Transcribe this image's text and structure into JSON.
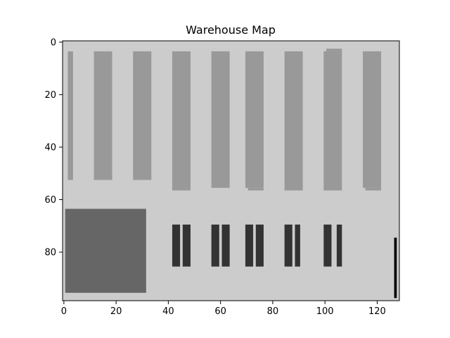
{
  "chart_data": {
    "type": "heatmap",
    "title": "Warehouse Map",
    "xlabel": "",
    "ylabel": "",
    "xlim": [
      -0.5,
      128.5
    ],
    "ylim": [
      98.5,
      -0.5
    ],
    "x_ticks": [
      0,
      20,
      40,
      60,
      80,
      100,
      120
    ],
    "y_ticks": [
      0,
      20,
      40,
      60,
      80
    ],
    "grid": false,
    "colormap": "gray",
    "background_value": 0.8,
    "background_color": "#cccccc",
    "regions": [
      {
        "kind": "shelf",
        "x": [
          1.5,
          3.5
        ],
        "y": [
          3.5,
          52.5
        ],
        "value": 0.6,
        "color": "#999999"
      },
      {
        "kind": "shelf",
        "x": [
          11.5,
          18.5
        ],
        "y": [
          3.5,
          52.5
        ],
        "value": 0.6,
        "color": "#999999"
      },
      {
        "kind": "shelf",
        "x": [
          26.5,
          33.5
        ],
        "y": [
          3.5,
          52.5
        ],
        "value": 0.6,
        "color": "#999999"
      },
      {
        "kind": "shelf",
        "x": [
          41.5,
          48.5
        ],
        "y": [
          3.5,
          56.5
        ],
        "value": 0.6,
        "color": "#999999"
      },
      {
        "kind": "shelf",
        "x": [
          56.5,
          63.5
        ],
        "y": [
          3.5,
          55.5
        ],
        "value": 0.6,
        "color": "#999999"
      },
      {
        "kind": "shelf",
        "x": [
          69.5,
          76.5
        ],
        "y": [
          3.5,
          55.5
        ],
        "value": 0.6,
        "color": "#999999"
      },
      {
        "kind": "shelf",
        "x": [
          70.5,
          76.5
        ],
        "y": [
          55.5,
          56.5
        ],
        "value": 0.6,
        "color": "#999999"
      },
      {
        "kind": "shelf",
        "x": [
          84.5,
          91.5
        ],
        "y": [
          3.5,
          56.5
        ],
        "value": 0.6,
        "color": "#999999"
      },
      {
        "kind": "shelf",
        "x": [
          99.5,
          106.5
        ],
        "y": [
          3.5,
          56.5
        ],
        "value": 0.6,
        "color": "#999999"
      },
      {
        "kind": "shelf",
        "x": [
          100.5,
          106.5
        ],
        "y": [
          2.5,
          3.5
        ],
        "value": 0.6,
        "color": "#999999"
      },
      {
        "kind": "shelf",
        "x": [
          114.5,
          121.5
        ],
        "y": [
          3.5,
          55.5
        ],
        "value": 0.6,
        "color": "#999999"
      },
      {
        "kind": "shelf",
        "x": [
          115.5,
          121.5
        ],
        "y": [
          55.5,
          56.5
        ],
        "value": 0.6,
        "color": "#999999"
      },
      {
        "kind": "block",
        "x": [
          0.5,
          31.5
        ],
        "y": [
          63.5,
          95.5
        ],
        "value": 0.4,
        "color": "#666666"
      },
      {
        "kind": "rack",
        "x": [
          41.5,
          44.5
        ],
        "y": [
          69.5,
          85.5
        ],
        "value": 0.2,
        "color": "#333333"
      },
      {
        "kind": "rack",
        "x": [
          45.5,
          48.5
        ],
        "y": [
          69.5,
          85.5
        ],
        "value": 0.2,
        "color": "#333333"
      },
      {
        "kind": "rack",
        "x": [
          56.5,
          59.5
        ],
        "y": [
          69.5,
          85.5
        ],
        "value": 0.2,
        "color": "#333333"
      },
      {
        "kind": "rack",
        "x": [
          60.5,
          63.5
        ],
        "y": [
          69.5,
          85.5
        ],
        "value": 0.2,
        "color": "#333333"
      },
      {
        "kind": "rack",
        "x": [
          69.5,
          72.5
        ],
        "y": [
          69.5,
          85.5
        ],
        "value": 0.2,
        "color": "#333333"
      },
      {
        "kind": "rack",
        "x": [
          73.5,
          76.5
        ],
        "y": [
          69.5,
          85.5
        ],
        "value": 0.2,
        "color": "#333333"
      },
      {
        "kind": "rack",
        "x": [
          84.5,
          87.5
        ],
        "y": [
          69.5,
          85.5
        ],
        "value": 0.2,
        "color": "#333333"
      },
      {
        "kind": "rack",
        "x": [
          88.5,
          90.5
        ],
        "y": [
          69.5,
          85.5
        ],
        "value": 0.2,
        "color": "#333333"
      },
      {
        "kind": "rack",
        "x": [
          99.5,
          102.5
        ],
        "y": [
          69.5,
          85.5
        ],
        "value": 0.2,
        "color": "#333333"
      },
      {
        "kind": "rack",
        "x": [
          104.5,
          106.5
        ],
        "y": [
          69.5,
          85.5
        ],
        "value": 0.2,
        "color": "#333333"
      },
      {
        "kind": "wall",
        "x": [
          126.5,
          127.5
        ],
        "y": [
          74.5,
          97.5
        ],
        "value": 0.0,
        "color": "#000000"
      }
    ]
  }
}
